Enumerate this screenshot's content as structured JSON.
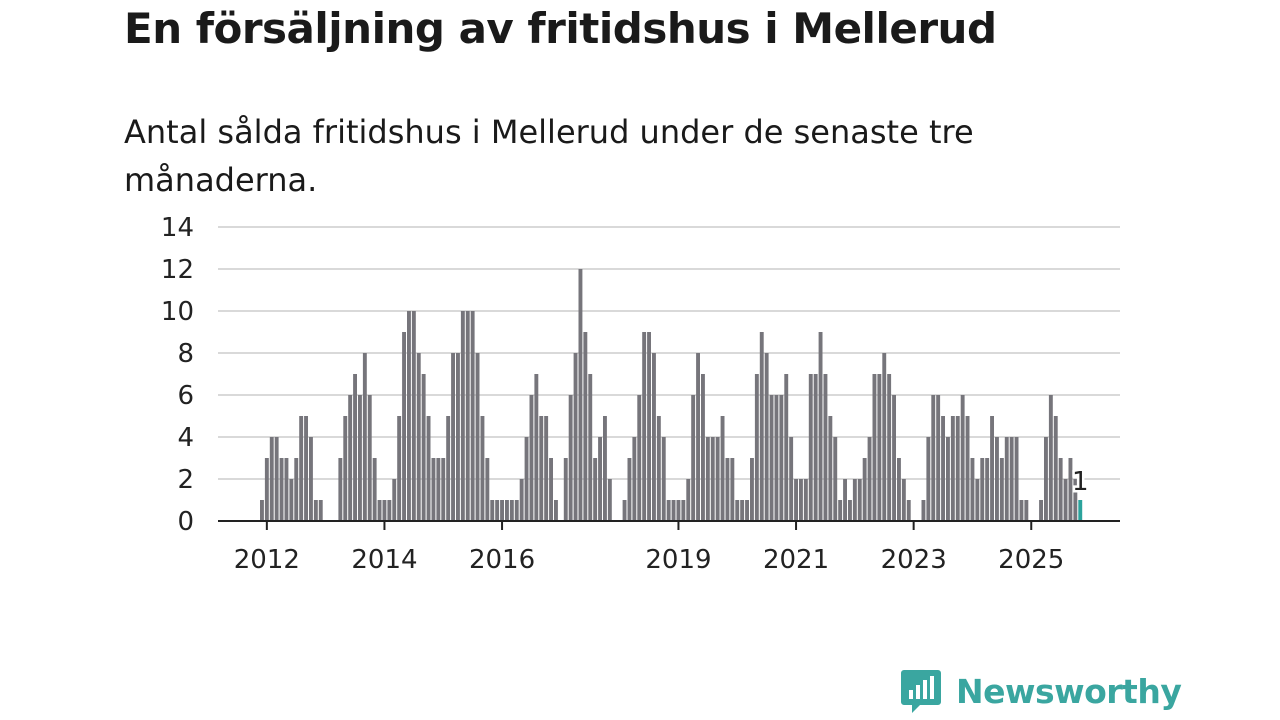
{
  "title": "En försäljning av fritidshus i Mellerud",
  "subtitle": "Antal sålda fritidshus i Mellerud under de senaste tre månaderna.",
  "brand": "Newsworthy",
  "colors": {
    "bar": "#76757b",
    "highlight": "#2ba39c",
    "grid": "#d9d9d9",
    "axis": "#222222",
    "brand": "#3aa6a0"
  },
  "chart_data": {
    "type": "bar",
    "x_start": "2011-12",
    "interval": "month",
    "ylim": [
      0,
      14
    ],
    "yticks": [
      0,
      2,
      4,
      6,
      8,
      10,
      12,
      14
    ],
    "xticks": [
      {
        "label": "2012",
        "at": "2012-01"
      },
      {
        "label": "2014",
        "at": "2014-01"
      },
      {
        "label": "2016",
        "at": "2016-01"
      },
      {
        "label": "2019",
        "at": "2019-01"
      },
      {
        "label": "2021",
        "at": "2021-01"
      },
      {
        "label": "2023",
        "at": "2023-01"
      },
      {
        "label": "2025",
        "at": "2025-01"
      }
    ],
    "grid": true,
    "values": [
      1,
      3,
      4,
      4,
      3,
      3,
      2,
      3,
      5,
      5,
      4,
      1,
      1,
      0,
      0,
      0,
      3,
      5,
      6,
      7,
      6,
      8,
      6,
      3,
      1,
      1,
      1,
      2,
      5,
      9,
      10,
      10,
      8,
      7,
      5,
      3,
      3,
      3,
      5,
      8,
      8,
      10,
      10,
      10,
      8,
      5,
      3,
      1,
      1,
      1,
      1,
      1,
      1,
      2,
      4,
      6,
      7,
      5,
      5,
      3,
      1,
      0,
      3,
      6,
      8,
      12,
      9,
      7,
      3,
      4,
      5,
      2,
      0,
      0,
      1,
      3,
      4,
      6,
      9,
      9,
      8,
      5,
      4,
      1,
      1,
      1,
      1,
      2,
      6,
      8,
      7,
      4,
      4,
      4,
      5,
      3,
      3,
      1,
      1,
      1,
      3,
      7,
      9,
      8,
      6,
      6,
      6,
      7,
      4,
      2,
      2,
      2,
      7,
      7,
      9,
      7,
      5,
      4,
      1,
      2,
      1,
      2,
      2,
      3,
      4,
      7,
      7,
      8,
      7,
      6,
      3,
      2,
      1,
      0,
      0,
      1,
      4,
      6,
      6,
      5,
      4,
      5,
      5,
      6,
      5,
      3,
      2,
      3,
      3,
      5,
      4,
      3,
      4,
      4,
      4,
      1,
      1,
      0,
      0,
      1,
      4,
      6,
      5,
      3,
      2,
      3,
      2,
      1
    ],
    "highlight": {
      "label": "1",
      "value": 1,
      "color": "#2ba39c"
    }
  }
}
